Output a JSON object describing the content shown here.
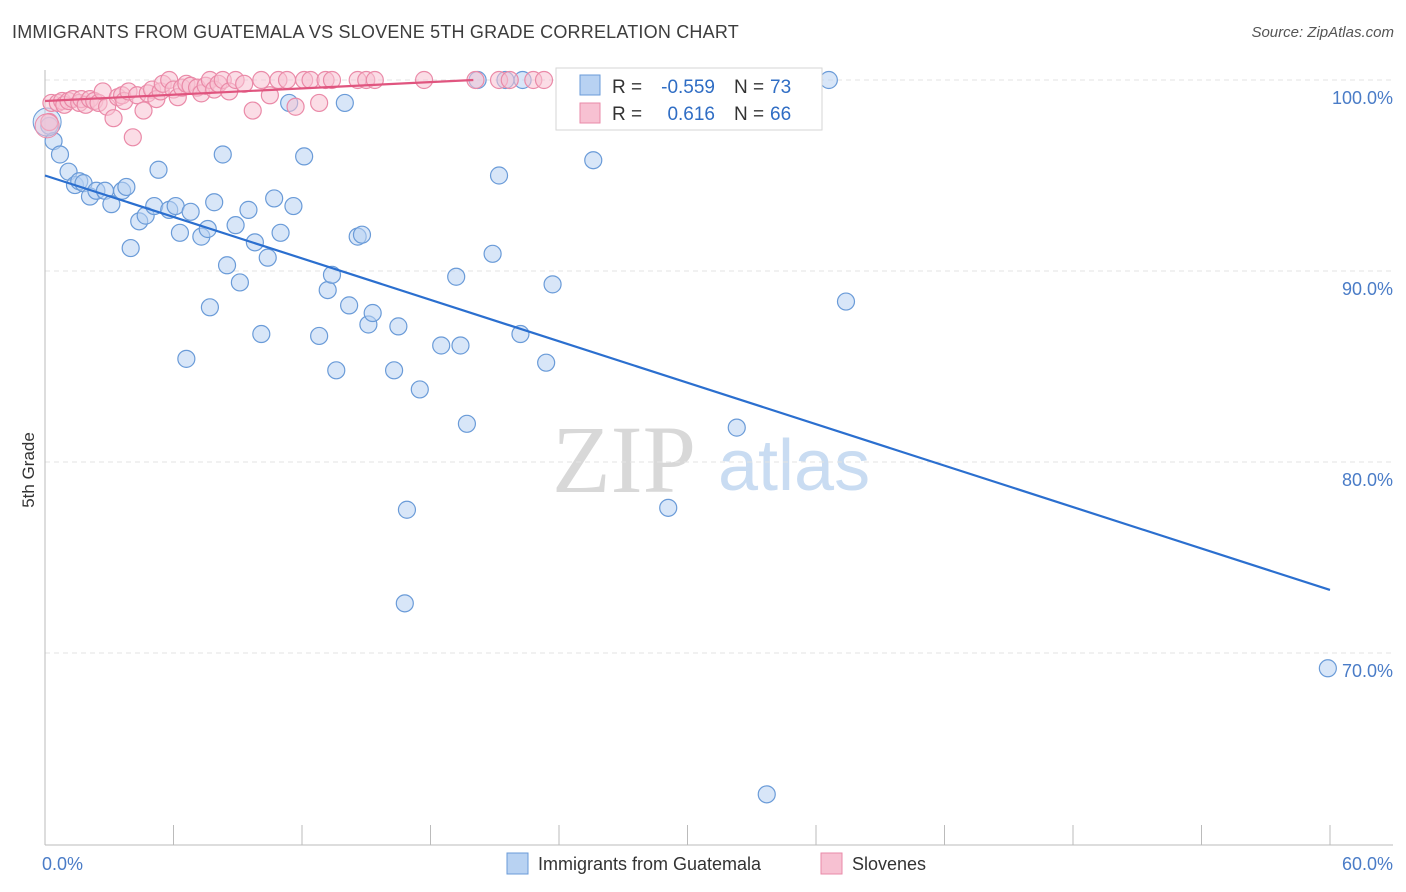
{
  "header": {
    "title": "IMMIGRANTS FROM GUATEMALA VS SLOVENE 5TH GRADE CORRELATION CHART",
    "source": "Source: ZipAtlas.com"
  },
  "watermark": {
    "zip": "ZIP",
    "atlas": "atlas"
  },
  "colors": {
    "blue_fill": "#b8d2f2",
    "blue_stroke": "#6a9bd8",
    "blue_line": "#2b6fcf",
    "pink_fill": "#f7c1d2",
    "pink_stroke": "#ea8aa8",
    "pink_line": "#e0557f",
    "grid": "#e3e3e3",
    "axis_text": "#4a7cc7"
  },
  "chart_data": {
    "type": "scatter",
    "title": "IMMIGRANTS FROM GUATEMALA VS SLOVENE 5TH GRADE CORRELATION CHART",
    "xlabel": "",
    "ylabel": "5th Grade",
    "xlim": [
      0,
      60
    ],
    "ylim": [
      60.5,
      101
    ],
    "x_tick_labels": [
      "0.0%",
      "60.0%"
    ],
    "y_ticks": [
      {
        "value": 100,
        "label": "100.0%"
      },
      {
        "value": 90,
        "label": "90.0%"
      },
      {
        "value": 80,
        "label": "80.0%"
      },
      {
        "value": 70,
        "label": "70.0%"
      }
    ],
    "legend": {
      "rows": [
        {
          "r_label": "R =",
          "r_value": "-0.559",
          "n_label": "N =",
          "n_value": "73"
        },
        {
          "r_label": "R =",
          "r_value": "0.616",
          "n_label": "N =",
          "n_value": "66"
        }
      ]
    },
    "series": [
      {
        "name": "Immigrants from Guatemala",
        "color": "blue",
        "trend": {
          "x": [
            0,
            60
          ],
          "y": [
            95.0,
            73.3
          ]
        },
        "points": [
          [
            0.2,
            97.6
          ],
          [
            0.4,
            96.8
          ],
          [
            0.7,
            96.1
          ],
          [
            1.1,
            95.2
          ],
          [
            1.4,
            94.5
          ],
          [
            1.6,
            94.7
          ],
          [
            1.8,
            94.6
          ],
          [
            2.1,
            93.9
          ],
          [
            2.4,
            94.2
          ],
          [
            2.8,
            94.2
          ],
          [
            3.1,
            93.5
          ],
          [
            3.6,
            94.2
          ],
          [
            3.8,
            94.4
          ],
          [
            4.0,
            91.2
          ],
          [
            4.4,
            92.6
          ],
          [
            4.7,
            92.9
          ],
          [
            5.1,
            93.4
          ],
          [
            5.3,
            95.3
          ],
          [
            5.8,
            93.2
          ],
          [
            6.1,
            93.4
          ],
          [
            6.3,
            92.0
          ],
          [
            6.6,
            85.4
          ],
          [
            6.8,
            93.1
          ],
          [
            7.3,
            91.8
          ],
          [
            7.6,
            92.2
          ],
          [
            7.7,
            88.1
          ],
          [
            7.9,
            93.6
          ],
          [
            8.3,
            96.1
          ],
          [
            8.5,
            90.3
          ],
          [
            8.9,
            92.4
          ],
          [
            9.1,
            89.4
          ],
          [
            9.5,
            93.2
          ],
          [
            9.8,
            91.5
          ],
          [
            10.1,
            86.7
          ],
          [
            10.4,
            90.7
          ],
          [
            10.7,
            93.8
          ],
          [
            11.0,
            92.0
          ],
          [
            11.4,
            98.8
          ],
          [
            11.6,
            93.4
          ],
          [
            12.1,
            96.0
          ],
          [
            12.8,
            86.6
          ],
          [
            13.2,
            89.0
          ],
          [
            13.4,
            89.8
          ],
          [
            13.6,
            84.8
          ],
          [
            14.0,
            98.8
          ],
          [
            14.2,
            88.2
          ],
          [
            14.6,
            91.8
          ],
          [
            14.8,
            91.9
          ],
          [
            15.1,
            87.2
          ],
          [
            15.3,
            87.8
          ],
          [
            16.3,
            84.8
          ],
          [
            16.5,
            87.1
          ],
          [
            16.9,
            77.5
          ],
          [
            16.8,
            72.6
          ],
          [
            17.5,
            83.8
          ],
          [
            18.5,
            86.1
          ],
          [
            19.2,
            89.7
          ],
          [
            19.4,
            86.1
          ],
          [
            19.7,
            82.0
          ],
          [
            20.2,
            100.0
          ],
          [
            20.9,
            90.9
          ],
          [
            21.2,
            95.0
          ],
          [
            21.5,
            100.0
          ],
          [
            22.2,
            86.7
          ],
          [
            22.3,
            100.0
          ],
          [
            23.4,
            85.2
          ],
          [
            23.7,
            89.3
          ],
          [
            25.6,
            95.8
          ],
          [
            29.1,
            77.6
          ],
          [
            32.3,
            81.8
          ],
          [
            33.7,
            62.6
          ],
          [
            36.6,
            100.0
          ],
          [
            37.4,
            88.4
          ],
          [
            59.9,
            69.2
          ]
        ]
      },
      {
        "name": "Slovenes",
        "color": "pink",
        "trend": {
          "x": [
            0,
            20
          ],
          "y": [
            98.9,
            100.0
          ]
        },
        "points": [
          [
            0.2,
            97.8
          ],
          [
            0.3,
            98.8
          ],
          [
            0.6,
            98.8
          ],
          [
            0.8,
            98.9
          ],
          [
            0.9,
            98.7
          ],
          [
            1.1,
            98.9
          ],
          [
            1.3,
            99.0
          ],
          [
            1.6,
            98.8
          ],
          [
            1.7,
            99.0
          ],
          [
            1.9,
            98.7
          ],
          [
            2.1,
            99.0
          ],
          [
            2.3,
            98.9
          ],
          [
            2.5,
            98.8
          ],
          [
            2.7,
            99.4
          ],
          [
            2.9,
            98.6
          ],
          [
            3.2,
            98.0
          ],
          [
            3.4,
            99.1
          ],
          [
            3.6,
            99.2
          ],
          [
            3.7,
            98.9
          ],
          [
            3.9,
            99.4
          ],
          [
            4.1,
            97.0
          ],
          [
            4.3,
            99.2
          ],
          [
            4.6,
            98.4
          ],
          [
            4.8,
            99.3
          ],
          [
            5.0,
            99.5
          ],
          [
            5.2,
            99.0
          ],
          [
            5.4,
            99.4
          ],
          [
            5.5,
            99.8
          ],
          [
            5.8,
            100.0
          ],
          [
            6.0,
            99.5
          ],
          [
            6.2,
            99.1
          ],
          [
            6.4,
            99.6
          ],
          [
            6.6,
            99.8
          ],
          [
            6.8,
            99.7
          ],
          [
            7.1,
            99.6
          ],
          [
            7.3,
            99.3
          ],
          [
            7.5,
            99.7
          ],
          [
            7.7,
            100.0
          ],
          [
            7.9,
            99.5
          ],
          [
            8.1,
            99.8
          ],
          [
            8.3,
            100.0
          ],
          [
            8.6,
            99.4
          ],
          [
            8.9,
            100.0
          ],
          [
            9.3,
            99.8
          ],
          [
            9.7,
            98.4
          ],
          [
            10.1,
            100.0
          ],
          [
            10.5,
            99.2
          ],
          [
            10.9,
            100.0
          ],
          [
            11.3,
            100.0
          ],
          [
            11.7,
            98.6
          ],
          [
            12.1,
            100.0
          ],
          [
            12.4,
            100.0
          ],
          [
            12.8,
            98.8
          ],
          [
            13.1,
            100.0
          ],
          [
            13.4,
            100.0
          ],
          [
            14.6,
            100.0
          ],
          [
            15.0,
            100.0
          ],
          [
            15.4,
            100.0
          ],
          [
            17.7,
            100.0
          ],
          [
            20.1,
            100.0
          ],
          [
            21.2,
            100.0
          ],
          [
            21.7,
            100.0
          ],
          [
            22.8,
            100.0
          ],
          [
            23.3,
            100.0
          ],
          [
            25.3,
            100.0
          ],
          [
            33.2,
            100.0
          ]
        ]
      }
    ]
  }
}
